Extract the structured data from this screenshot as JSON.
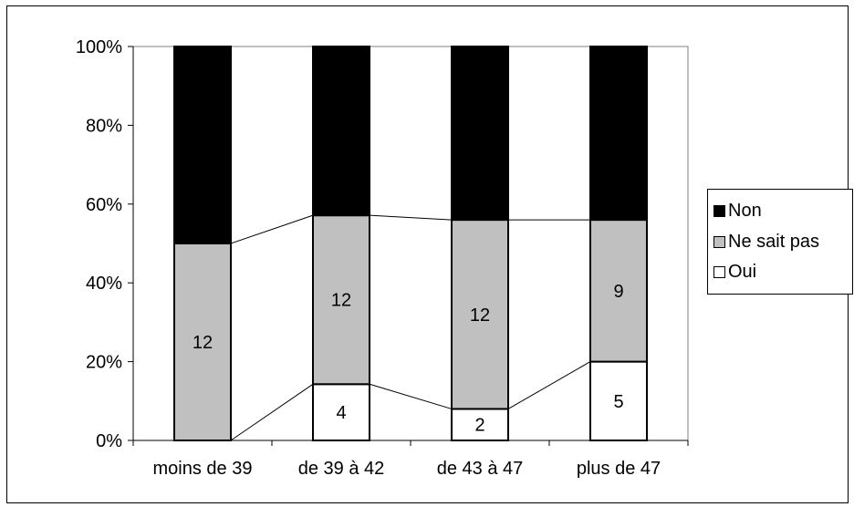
{
  "chart_data": {
    "type": "bar",
    "stacked": true,
    "normalized": true,
    "categories": [
      "moins de 39",
      "de 39 à 42",
      "de 43 à 47",
      "plus de 47"
    ],
    "series": [
      {
        "name": "Oui",
        "values": [
          0,
          4,
          2,
          5
        ],
        "color": "#ffffff"
      },
      {
        "name": "Ne sait pas",
        "values": [
          12,
          12,
          12,
          9
        ],
        "color": "#c0c0c0"
      },
      {
        "name": "Non",
        "values": [
          12,
          12,
          11,
          11
        ],
        "color": "#000000"
      }
    ],
    "y_ticks": [
      "0%",
      "20%",
      "40%",
      "60%",
      "80%",
      "100%"
    ],
    "ylim": [
      0,
      100
    ],
    "legend_order": [
      "Non",
      "Ne sait pas",
      "Oui"
    ],
    "legend_position": "right",
    "series_lines": true
  }
}
